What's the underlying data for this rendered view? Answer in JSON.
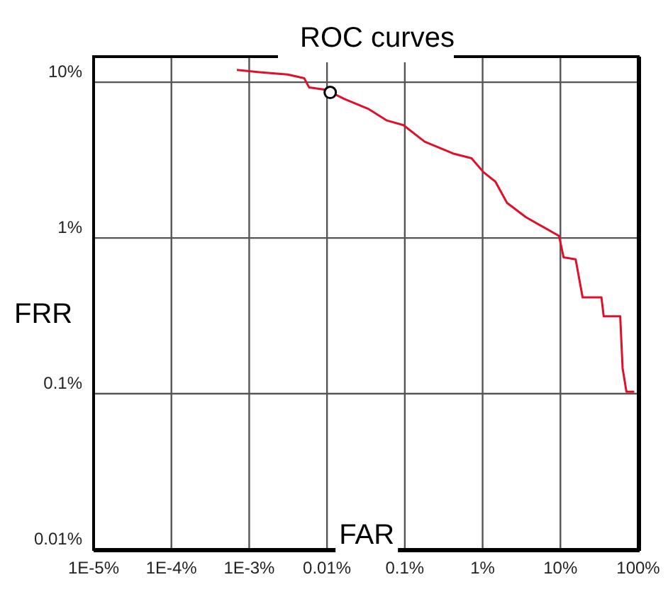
{
  "chart_data": {
    "type": "line",
    "title": "ROC curves",
    "xlabel": "FAR",
    "ylabel": "FRR",
    "log": "xy",
    "grid": true,
    "xlim": [
      1e-05,
      100
    ],
    "ylim": [
      0.01,
      14.6
    ],
    "xticks": [
      {
        "value": 1e-05,
        "label": "1E-5%"
      },
      {
        "value": 0.0001,
        "label": "1E-4%"
      },
      {
        "value": 0.001,
        "label": "1E-3%"
      },
      {
        "value": 0.01,
        "label": "0.01%"
      },
      {
        "value": 0.1,
        "label": "0.1%"
      },
      {
        "value": 1,
        "label": "1%"
      },
      {
        "value": 10,
        "label": "10%"
      },
      {
        "value": 100,
        "label": "100%"
      }
    ],
    "yticks": [
      {
        "value": 0.01,
        "label": "0.01%"
      },
      {
        "value": 0.1,
        "label": "0.1%"
      },
      {
        "value": 1,
        "label": "1%"
      },
      {
        "value": 10,
        "label": "10%"
      }
    ],
    "series": [
      {
        "color": "#e0102a",
        "marker": "none",
        "x": [
          0.000695,
          0.00136,
          0.00313,
          0.0051,
          0.0059,
          0.0096,
          0.0168,
          0.0337,
          0.0588,
          0.096,
          0.18,
          0.415,
          0.72,
          1.03,
          1.46,
          2.06,
          3.6,
          9.6,
          11,
          15.7,
          19.3,
          33.7,
          36,
          58.7,
          63,
          70.6,
          89
        ],
        "values": [
          12.0,
          11.6,
          11.2,
          10.6,
          9.25,
          8.95,
          7.8,
          6.76,
          5.68,
          5.3,
          4.15,
          3.49,
          3.25,
          2.64,
          2.3,
          1.68,
          1.36,
          1.03,
          0.75,
          0.73,
          0.415,
          0.415,
          0.314,
          0.314,
          0.146,
          0.103,
          0.103
        ]
      },
      {
        "type": "scatter",
        "color": "#000000",
        "marker": "circle",
        "x": [
          0.011
        ],
        "values": [
          8.6
        ]
      }
    ]
  }
}
